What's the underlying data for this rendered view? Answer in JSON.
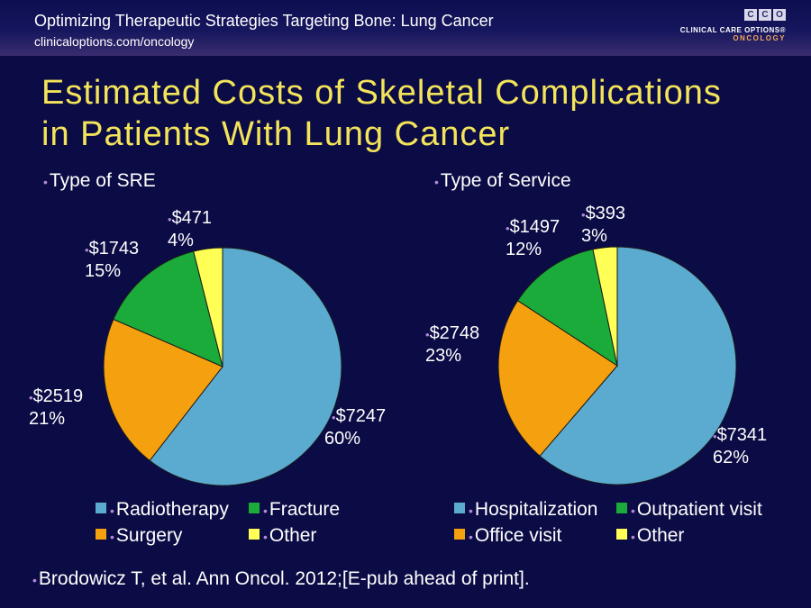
{
  "header": {
    "title": "Optimizing Therapeutic Strategies Targeting Bone: Lung Cancer",
    "url": "clinicaloptions.com/oncology"
  },
  "brand": {
    "letters": [
      "C",
      "C",
      "O"
    ],
    "name": "CLINICAL CARE OPTIONS®",
    "sub": "ONCOLOGY"
  },
  "slide": {
    "title_line1": "Estimated Costs of Skeletal Complications",
    "title_line2": "in Patients With Lung Cancer"
  },
  "chart_data": [
    {
      "type": "pie",
      "title": "Type of SRE",
      "categories": [
        "Radiotherapy",
        "Surgery",
        "Fracture",
        "Other"
      ],
      "values": [
        7247,
        2519,
        1743,
        471
      ],
      "value_labels": [
        "$7247",
        "$2519",
        "$1743",
        "$471"
      ],
      "percent_labels": [
        "60%",
        "21%",
        "15%",
        "4%"
      ],
      "colors": [
        "#5aabcf",
        "#f5a00f",
        "#1aab3a",
        "#ffff55"
      ],
      "legend_position": "bottom"
    },
    {
      "type": "pie",
      "title": "Type of Service",
      "categories": [
        "Hospitalization",
        "Office visit",
        "Outpatient visit",
        "Other"
      ],
      "values": [
        7341,
        2748,
        1497,
        393
      ],
      "value_labels": [
        "$7341",
        "$2748",
        "$1497",
        "$393"
      ],
      "percent_labels": [
        "62%",
        "23%",
        "12%",
        "3%"
      ],
      "colors": [
        "#5aabcf",
        "#f5a00f",
        "#1aab3a",
        "#ffff55"
      ],
      "legend_position": "bottom"
    }
  ],
  "legend_left": [
    {
      "label": "Radiotherapy",
      "color": "#5aabcf"
    },
    {
      "label": "Fracture",
      "color": "#1aab3a"
    },
    {
      "label": "Surgery",
      "color": "#f5a00f"
    },
    {
      "label": "Other",
      "color": "#ffff55"
    }
  ],
  "legend_right": [
    {
      "label": "Hospitalization",
      "color": "#5aabcf"
    },
    {
      "label": "Outpatient visit",
      "color": "#1aab3a"
    },
    {
      "label": "Office visit",
      "color": "#f5a00f"
    },
    {
      "label": "Other",
      "color": "#ffff55"
    }
  ],
  "footnote": "Brodowicz T, et al. Ann Oncol. 2012;[E-pub ahead of print]."
}
